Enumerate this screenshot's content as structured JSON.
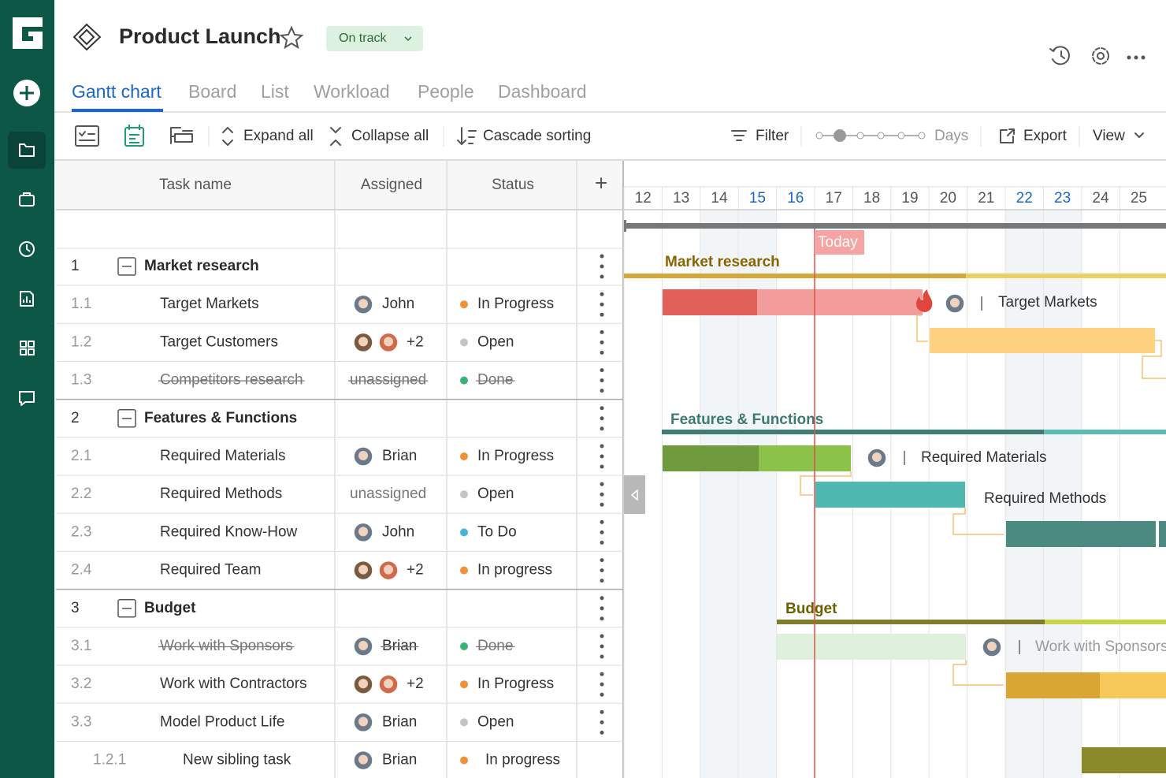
{
  "header": {
    "title": "Product Launch",
    "status": "On track"
  },
  "tabs": [
    "Gantt chart",
    "Board",
    "List",
    "Workload",
    "People",
    "Dashboard"
  ],
  "toolbar": {
    "expand": "Expand all",
    "collapse": "Collapse all",
    "sorting": "Cascade sorting",
    "filter": "Filter",
    "zoom": "Days",
    "export": "Export",
    "view": "View"
  },
  "table": {
    "columns": [
      "Task name",
      "Assigned",
      "Status"
    ],
    "add": "+",
    "rows": [
      {
        "id": "1",
        "name": "Market research"
      },
      {
        "id": "1.1",
        "name": "Target Markets",
        "assigned": "John",
        "status": "In Progress",
        "dot": "#f0913a"
      },
      {
        "id": "1.2",
        "name": "Target Customers",
        "extra": "+2",
        "status": "Open",
        "dot": "#c4c4c4"
      },
      {
        "id": "1.3",
        "name": "Competitors research",
        "assigned": "unassigned",
        "status": "Done",
        "dot": "#3bb273",
        "strikethrough": true
      },
      {
        "id": "2",
        "name": "Features & Functions"
      },
      {
        "id": "2.1",
        "name": "Required Materials",
        "assigned": "Brian",
        "status": "In Progress",
        "dot": "#f0913a"
      },
      {
        "id": "2.2",
        "name": "Required Methods",
        "assigned": "unassigned",
        "status": "Open",
        "dot": "#c4c4c4"
      },
      {
        "id": "2.3",
        "name": "Required Know-How",
        "assigned": "John",
        "status": "To Do",
        "dot": "#4ab6d6"
      },
      {
        "id": "2.4",
        "name": "Required Team",
        "extra": "+2",
        "status": "In progress",
        "dot": "#f0913a"
      },
      {
        "id": "3",
        "name": "Budget"
      },
      {
        "id": "3.1",
        "name": "Work with Sponsors",
        "assigned": "Brian",
        "status": "Done",
        "dot": "#3bb273",
        "strikethrough": true
      },
      {
        "id": "3.2",
        "name": "Work with Contractors",
        "extra": "+2",
        "status": "In Progress",
        "dot": "#f0913a"
      },
      {
        "id": "3.3",
        "name": "Model Product Life",
        "assigned": "Brian",
        "status": "Open",
        "dot": "#c4c4c4"
      },
      {
        "id": "1.2.1",
        "name": "New sibling task",
        "assigned": "Brian",
        "status": "In progress",
        "dot": "#f0913a"
      }
    ]
  },
  "timeline": {
    "days": [
      12,
      13,
      14,
      15,
      16,
      17,
      18,
      19,
      20,
      21,
      22,
      23,
      24,
      25
    ],
    "today": "Today"
  }
}
